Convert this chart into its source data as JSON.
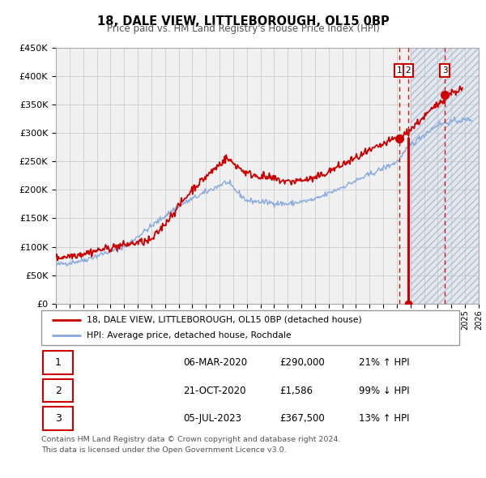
{
  "title": "18, DALE VIEW, LITTLEBOROUGH, OL15 0BP",
  "subtitle": "Price paid vs. HM Land Registry's House Price Index (HPI)",
  "xlim": [
    1995,
    2026
  ],
  "ylim": [
    0,
    450000
  ],
  "yticks": [
    0,
    50000,
    100000,
    150000,
    200000,
    250000,
    300000,
    350000,
    400000,
    450000
  ],
  "ytick_labels": [
    "£0",
    "£50K",
    "£100K",
    "£150K",
    "£200K",
    "£250K",
    "£300K",
    "£350K",
    "£400K",
    "£450K"
  ],
  "xticks": [
    1995,
    1996,
    1997,
    1998,
    1999,
    2000,
    2001,
    2002,
    2003,
    2004,
    2005,
    2006,
    2007,
    2008,
    2009,
    2010,
    2011,
    2012,
    2013,
    2014,
    2015,
    2016,
    2017,
    2018,
    2019,
    2020,
    2021,
    2022,
    2023,
    2024,
    2025,
    2026
  ],
  "red_line_color": "#cc0000",
  "blue_line_color": "#88aadd",
  "grid_color": "#cccccc",
  "bg_color": "#f0f0f0",
  "shaded_region_color": "#dde8f0",
  "event1_x": 2020.18,
  "event2_x": 2020.81,
  "event3_x": 2023.51,
  "event1_y": 290000,
  "event2_y": 1586,
  "event3_y": 367500,
  "legend_label_red": "18, DALE VIEW, LITTLEBOROUGH, OL15 0BP (detached house)",
  "legend_label_blue": "HPI: Average price, detached house, Rochdale",
  "table_row1": [
    "1",
    "06-MAR-2020",
    "£290,000",
    "21% ↑ HPI"
  ],
  "table_row2": [
    "2",
    "21-OCT-2020",
    "£1,586",
    "99% ↓ HPI"
  ],
  "table_row3": [
    "3",
    "05-JUL-2023",
    "£367,500",
    "13% ↑ HPI"
  ],
  "footer1": "Contains HM Land Registry data © Crown copyright and database right 2024.",
  "footer2": "This data is licensed under the Open Government Licence v3.0."
}
